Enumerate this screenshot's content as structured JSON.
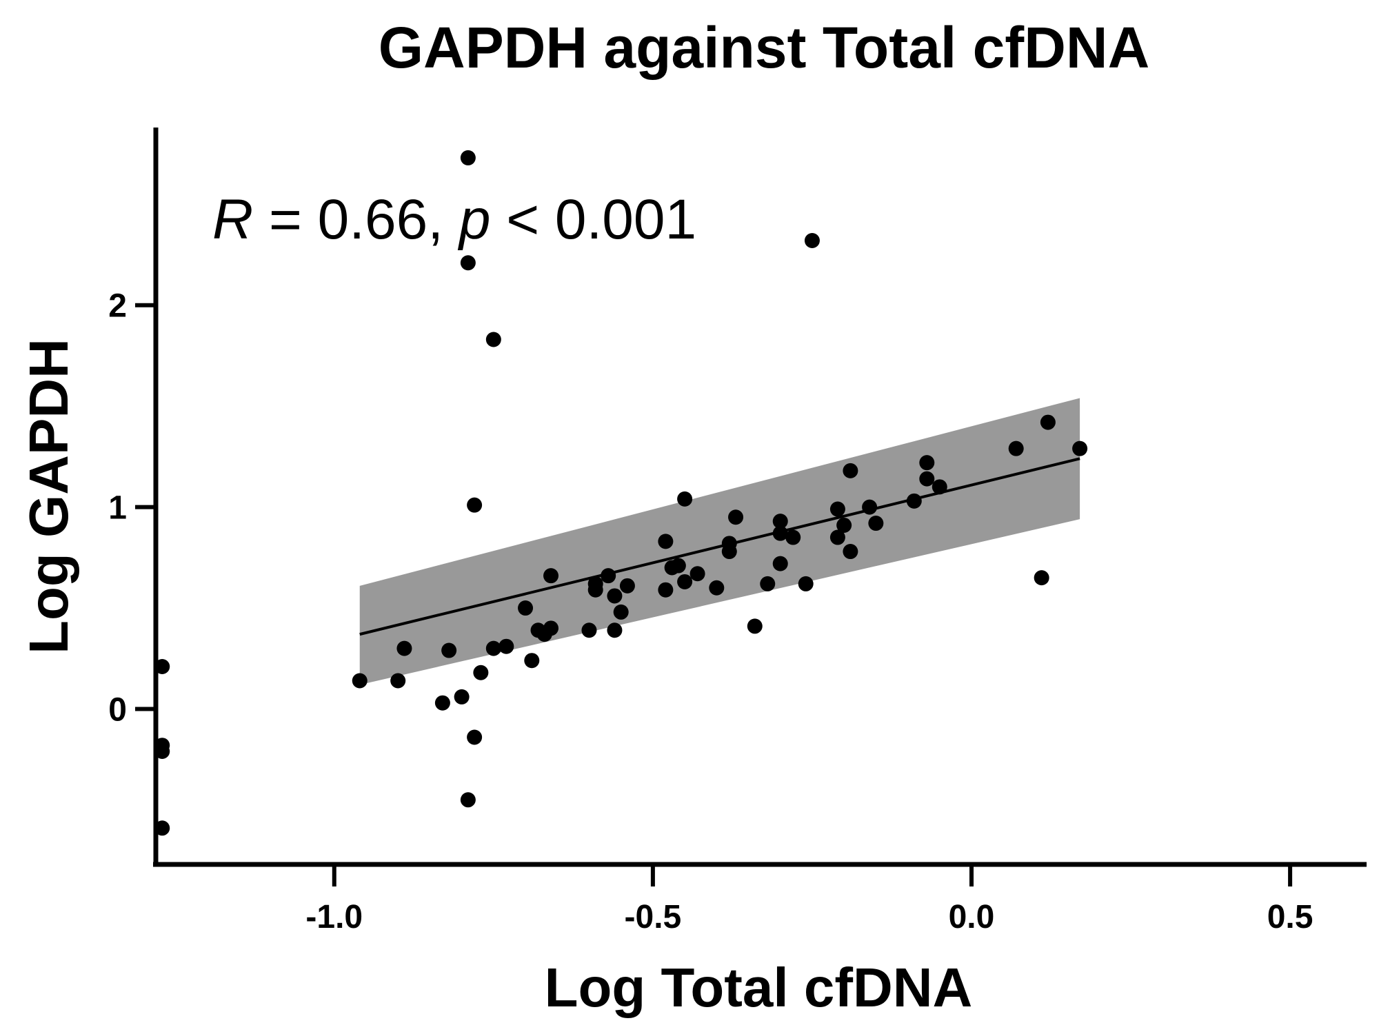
{
  "chart_data": {
    "type": "scatter",
    "title": "GAPDH against Total cfDNA",
    "xlabel": "Log Total cfDNA",
    "ylabel": "Log GAPDH",
    "xlim": [
      -1.28,
      0.62
    ],
    "ylim": [
      -0.77,
      2.88
    ],
    "xticks": [
      -1.0,
      -0.5,
      0.0,
      0.5
    ],
    "xtick_labels": [
      "-1.0",
      "-0.5",
      "0.0",
      "0.5"
    ],
    "yticks": [
      0,
      1,
      2
    ],
    "ytick_labels": [
      "0",
      "1",
      "2"
    ],
    "annotation": {
      "R_symbol": "R",
      "r_text": " = 0.66, ",
      "p_symbol": "p",
      "p_text": " < 0.001"
    },
    "points": [
      {
        "x": -1.27,
        "y": 0.21
      },
      {
        "x": -1.27,
        "y": -0.18
      },
      {
        "x": -1.27,
        "y": -0.21
      },
      {
        "x": -1.27,
        "y": -0.59
      },
      {
        "x": -0.96,
        "y": 0.14
      },
      {
        "x": -0.9,
        "y": 0.14
      },
      {
        "x": -0.89,
        "y": 0.3
      },
      {
        "x": -0.83,
        "y": 0.03
      },
      {
        "x": -0.82,
        "y": 0.29
      },
      {
        "x": -0.8,
        "y": 0.06
      },
      {
        "x": -0.79,
        "y": 2.73
      },
      {
        "x": -0.79,
        "y": 2.21
      },
      {
        "x": -0.78,
        "y": 1.01
      },
      {
        "x": -0.78,
        "y": -0.14
      },
      {
        "x": -0.79,
        "y": -0.45
      },
      {
        "x": -0.77,
        "y": 0.18
      },
      {
        "x": -0.75,
        "y": 1.83
      },
      {
        "x": -0.75,
        "y": 0.3
      },
      {
        "x": -0.73,
        "y": 0.31
      },
      {
        "x": -0.7,
        "y": 0.5
      },
      {
        "x": -0.69,
        "y": 0.24
      },
      {
        "x": -0.68,
        "y": 0.39
      },
      {
        "x": -0.67,
        "y": 0.37
      },
      {
        "x": -0.66,
        "y": 0.66
      },
      {
        "x": -0.66,
        "y": 0.4
      },
      {
        "x": -0.6,
        "y": 0.39
      },
      {
        "x": -0.59,
        "y": 0.62
      },
      {
        "x": -0.59,
        "y": 0.59
      },
      {
        "x": -0.57,
        "y": 0.66
      },
      {
        "x": -0.56,
        "y": 0.56
      },
      {
        "x": -0.56,
        "y": 0.39
      },
      {
        "x": -0.55,
        "y": 0.48
      },
      {
        "x": -0.54,
        "y": 0.61
      },
      {
        "x": -0.48,
        "y": 0.83
      },
      {
        "x": -0.48,
        "y": 0.59
      },
      {
        "x": -0.47,
        "y": 0.7
      },
      {
        "x": -0.46,
        "y": 0.71
      },
      {
        "x": -0.45,
        "y": 1.04
      },
      {
        "x": -0.45,
        "y": 0.63
      },
      {
        "x": -0.43,
        "y": 0.67
      },
      {
        "x": -0.4,
        "y": 0.6
      },
      {
        "x": -0.38,
        "y": 0.82
      },
      {
        "x": -0.38,
        "y": 0.78
      },
      {
        "x": -0.37,
        "y": 0.95
      },
      {
        "x": -0.34,
        "y": 0.41
      },
      {
        "x": -0.32,
        "y": 0.62
      },
      {
        "x": -0.3,
        "y": 0.93
      },
      {
        "x": -0.3,
        "y": 0.87
      },
      {
        "x": -0.3,
        "y": 0.72
      },
      {
        "x": -0.28,
        "y": 0.85
      },
      {
        "x": -0.26,
        "y": 0.62
      },
      {
        "x": -0.25,
        "y": 2.32
      },
      {
        "x": -0.21,
        "y": 0.99
      },
      {
        "x": -0.21,
        "y": 0.85
      },
      {
        "x": -0.2,
        "y": 0.91
      },
      {
        "x": -0.19,
        "y": 1.18
      },
      {
        "x": -0.19,
        "y": 0.78
      },
      {
        "x": -0.16,
        "y": 1.0
      },
      {
        "x": -0.15,
        "y": 0.92
      },
      {
        "x": -0.09,
        "y": 1.03
      },
      {
        "x": -0.07,
        "y": 1.22
      },
      {
        "x": -0.07,
        "y": 1.14
      },
      {
        "x": -0.05,
        "y": 1.1
      },
      {
        "x": 0.07,
        "y": 1.29
      },
      {
        "x": 0.11,
        "y": 0.65
      },
      {
        "x": 0.12,
        "y": 1.42
      },
      {
        "x": 0.17,
        "y": 1.29
      }
    ],
    "regression": {
      "x": [
        -0.96,
        0.17
      ],
      "y": [
        0.37,
        1.24
      ],
      "ci_upper": [
        0.61,
        1.54
      ],
      "ci_lower": [
        0.12,
        0.94
      ]
    },
    "colors": {
      "points": "#000000",
      "line": "#000000",
      "ci_band": "#999999",
      "axes": "#000000"
    },
    "grid": false,
    "legend": "none"
  }
}
